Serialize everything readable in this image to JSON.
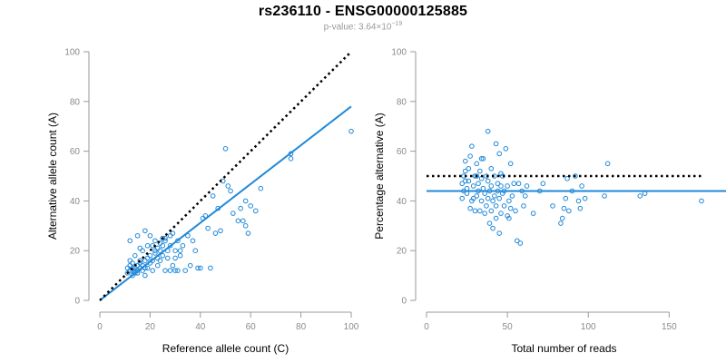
{
  "figure": {
    "title": "rs236110 - ENSG00000125885",
    "pvalue_prefix": "p-value: 3.64×10",
    "pvalue_exponent": "−19"
  },
  "colors": {
    "points": "#1f88d8",
    "fit_line": "#1f88d8",
    "reference_line": "#000000",
    "axis": "#9a9a9a",
    "tick_text": "#8a8a8a"
  },
  "chart_data": [
    {
      "type": "scatter",
      "title": "",
      "xlabel": "Reference allele count (C)",
      "ylabel": "Alternative allele count (A)",
      "xlim": [
        0,
        100
      ],
      "ylim": [
        0,
        100
      ],
      "xticks": [
        0,
        20,
        40,
        60,
        80,
        100
      ],
      "yticks": [
        0,
        20,
        40,
        60,
        80,
        100
      ],
      "grid": false,
      "points": [
        [
          11,
          11
        ],
        [
          11,
          13
        ],
        [
          12,
          12
        ],
        [
          12,
          14
        ],
        [
          12,
          16
        ],
        [
          13,
          10
        ],
        [
          13,
          12
        ],
        [
          13,
          13
        ],
        [
          13,
          15
        ],
        [
          14,
          11
        ],
        [
          14,
          12
        ],
        [
          14,
          13
        ],
        [
          15,
          11
        ],
        [
          15,
          12
        ],
        [
          15,
          14
        ],
        [
          16,
          13
        ],
        [
          16,
          15
        ],
        [
          16,
          16
        ],
        [
          17,
          12
        ],
        [
          17,
          14
        ],
        [
          17,
          20
        ],
        [
          18,
          10
        ],
        [
          18,
          13
        ],
        [
          18,
          16
        ],
        [
          19,
          13
        ],
        [
          19,
          17
        ],
        [
          20,
          15
        ],
        [
          20,
          18
        ],
        [
          21,
          12
        ],
        [
          21,
          16
        ],
        [
          22,
          19
        ],
        [
          22,
          20
        ],
        [
          23,
          14
        ],
        [
          23,
          17
        ],
        [
          24,
          16
        ],
        [
          24,
          20
        ],
        [
          24,
          23
        ],
        [
          25,
          18
        ],
        [
          25,
          22
        ],
        [
          26,
          12
        ],
        [
          26,
          24
        ],
        [
          27,
          17
        ],
        [
          27,
          20
        ],
        [
          28,
          12
        ],
        [
          28,
          22
        ],
        [
          28,
          26
        ],
        [
          29,
          14
        ],
        [
          30,
          12
        ],
        [
          30,
          17
        ],
        [
          30,
          20
        ],
        [
          31,
          12
        ],
        [
          31,
          24
        ],
        [
          32,
          18
        ],
        [
          32,
          20
        ],
        [
          33,
          22
        ],
        [
          34,
          12
        ],
        [
          35,
          26
        ],
        [
          36,
          14
        ],
        [
          37,
          24
        ],
        [
          38,
          20
        ],
        [
          39,
          13
        ],
        [
          40,
          13
        ],
        [
          41,
          33
        ],
        [
          42,
          34
        ],
        [
          43,
          29
        ],
        [
          44,
          13
        ],
        [
          45,
          42
        ],
        [
          46,
          27
        ],
        [
          47,
          37
        ],
        [
          48,
          28
        ],
        [
          49,
          48
        ],
        [
          50,
          61
        ],
        [
          51,
          46
        ],
        [
          52,
          44
        ],
        [
          53,
          35
        ],
        [
          55,
          32
        ],
        [
          56,
          37
        ],
        [
          57,
          32
        ],
        [
          58,
          40
        ],
        [
          58,
          30
        ],
        [
          59,
          27
        ],
        [
          60,
          38
        ],
        [
          62,
          36
        ],
        [
          64,
          45
        ],
        [
          76,
          59
        ],
        [
          76,
          57
        ],
        [
          100,
          68
        ],
        [
          12,
          24
        ],
        [
          15,
          26
        ],
        [
          18,
          28
        ],
        [
          20,
          26
        ],
        [
          22,
          24
        ],
        [
          25,
          25
        ],
        [
          14,
          18
        ],
        [
          16,
          21
        ],
        [
          19,
          22
        ],
        [
          21,
          22
        ],
        [
          23,
          21
        ],
        [
          26,
          25
        ],
        [
          29,
          27
        ]
      ],
      "lines": [
        {
          "kind": "fit",
          "style": "solid",
          "x": [
            0,
            100
          ],
          "y": [
            0,
            78
          ]
        },
        {
          "kind": "reference",
          "style": "dotted",
          "x": [
            0,
            100
          ],
          "y": [
            0,
            100
          ]
        }
      ]
    },
    {
      "type": "scatter",
      "title": "",
      "xlabel": "Total number of reads",
      "ylabel": "Percentage alternative (A)",
      "xlim": [
        0,
        170
      ],
      "ylim": [
        0,
        100
      ],
      "xticks": [
        0,
        50,
        100,
        150
      ],
      "yticks": [
        0,
        20,
        40,
        60,
        80,
        100
      ],
      "grid": false,
      "points": [
        [
          22,
          41
        ],
        [
          22,
          47
        ],
        [
          23,
          44
        ],
        [
          23,
          50
        ],
        [
          24,
          52
        ],
        [
          24,
          56
        ],
        [
          25,
          43
        ],
        [
          25,
          45
        ],
        [
          26,
          48
        ],
        [
          26,
          53
        ],
        [
          27,
          37
        ],
        [
          27,
          58
        ],
        [
          28,
          62
        ],
        [
          29,
          41
        ],
        [
          29,
          46
        ],
        [
          30,
          36
        ],
        [
          30,
          50
        ],
        [
          31,
          42
        ],
        [
          31,
          55
        ],
        [
          32,
          44
        ],
        [
          32,
          47
        ],
        [
          33,
          36
        ],
        [
          33,
          52
        ],
        [
          34,
          40
        ],
        [
          34,
          49
        ],
        [
          35,
          45
        ],
        [
          35,
          57
        ],
        [
          36,
          35
        ],
        [
          36,
          43
        ],
        [
          37,
          38
        ],
        [
          37,
          50
        ],
        [
          38,
          41
        ],
        [
          38,
          48
        ],
        [
          38,
          68
        ],
        [
          39,
          31
        ],
        [
          39,
          44
        ],
        [
          40,
          36
        ],
        [
          40,
          46
        ],
        [
          40,
          53
        ],
        [
          41,
          29
        ],
        [
          41,
          40
        ],
        [
          42,
          42
        ],
        [
          42,
          50
        ],
        [
          43,
          33
        ],
        [
          43,
          38
        ],
        [
          43,
          63
        ],
        [
          44,
          44
        ],
        [
          44,
          47
        ],
        [
          45,
          27
        ],
        [
          45,
          41
        ],
        [
          45,
          59
        ],
        [
          46,
          35
        ],
        [
          46,
          46
        ],
        [
          47,
          43
        ],
        [
          47,
          50
        ],
        [
          48,
          38
        ],
        [
          48,
          44
        ],
        [
          49,
          61
        ],
        [
          50,
          34
        ],
        [
          50,
          46
        ],
        [
          51,
          33
        ],
        [
          51,
          40
        ],
        [
          52,
          37
        ],
        [
          52,
          55
        ],
        [
          53,
          42
        ],
        [
          54,
          47
        ],
        [
          55,
          36
        ],
        [
          56,
          24
        ],
        [
          57,
          47
        ],
        [
          58,
          23
        ],
        [
          59,
          44
        ],
        [
          60,
          38
        ],
        [
          61,
          42
        ],
        [
          62,
          46
        ],
        [
          66,
          35
        ],
        [
          70,
          44
        ],
        [
          72,
          47
        ],
        [
          78,
          38
        ],
        [
          83,
          31
        ],
        [
          84,
          33
        ],
        [
          85,
          37
        ],
        [
          86,
          41
        ],
        [
          87,
          49
        ],
        [
          90,
          44
        ],
        [
          92,
          50
        ],
        [
          94,
          40
        ],
        [
          95,
          37
        ],
        [
          96,
          46
        ],
        [
          98,
          41
        ],
        [
          110,
          42
        ],
        [
          112,
          55
        ],
        [
          132,
          42
        ],
        [
          135,
          43
        ],
        [
          170,
          40
        ],
        [
          88,
          36
        ],
        [
          28,
          40
        ],
        [
          46,
          51
        ],
        [
          34,
          57
        ],
        [
          24,
          48
        ],
        [
          31,
          50
        ]
      ],
      "lines": [
        {
          "kind": "fit",
          "style": "solid",
          "y_value": 44
        },
        {
          "kind": "reference",
          "style": "dotted",
          "y_value": 50
        }
      ]
    }
  ]
}
